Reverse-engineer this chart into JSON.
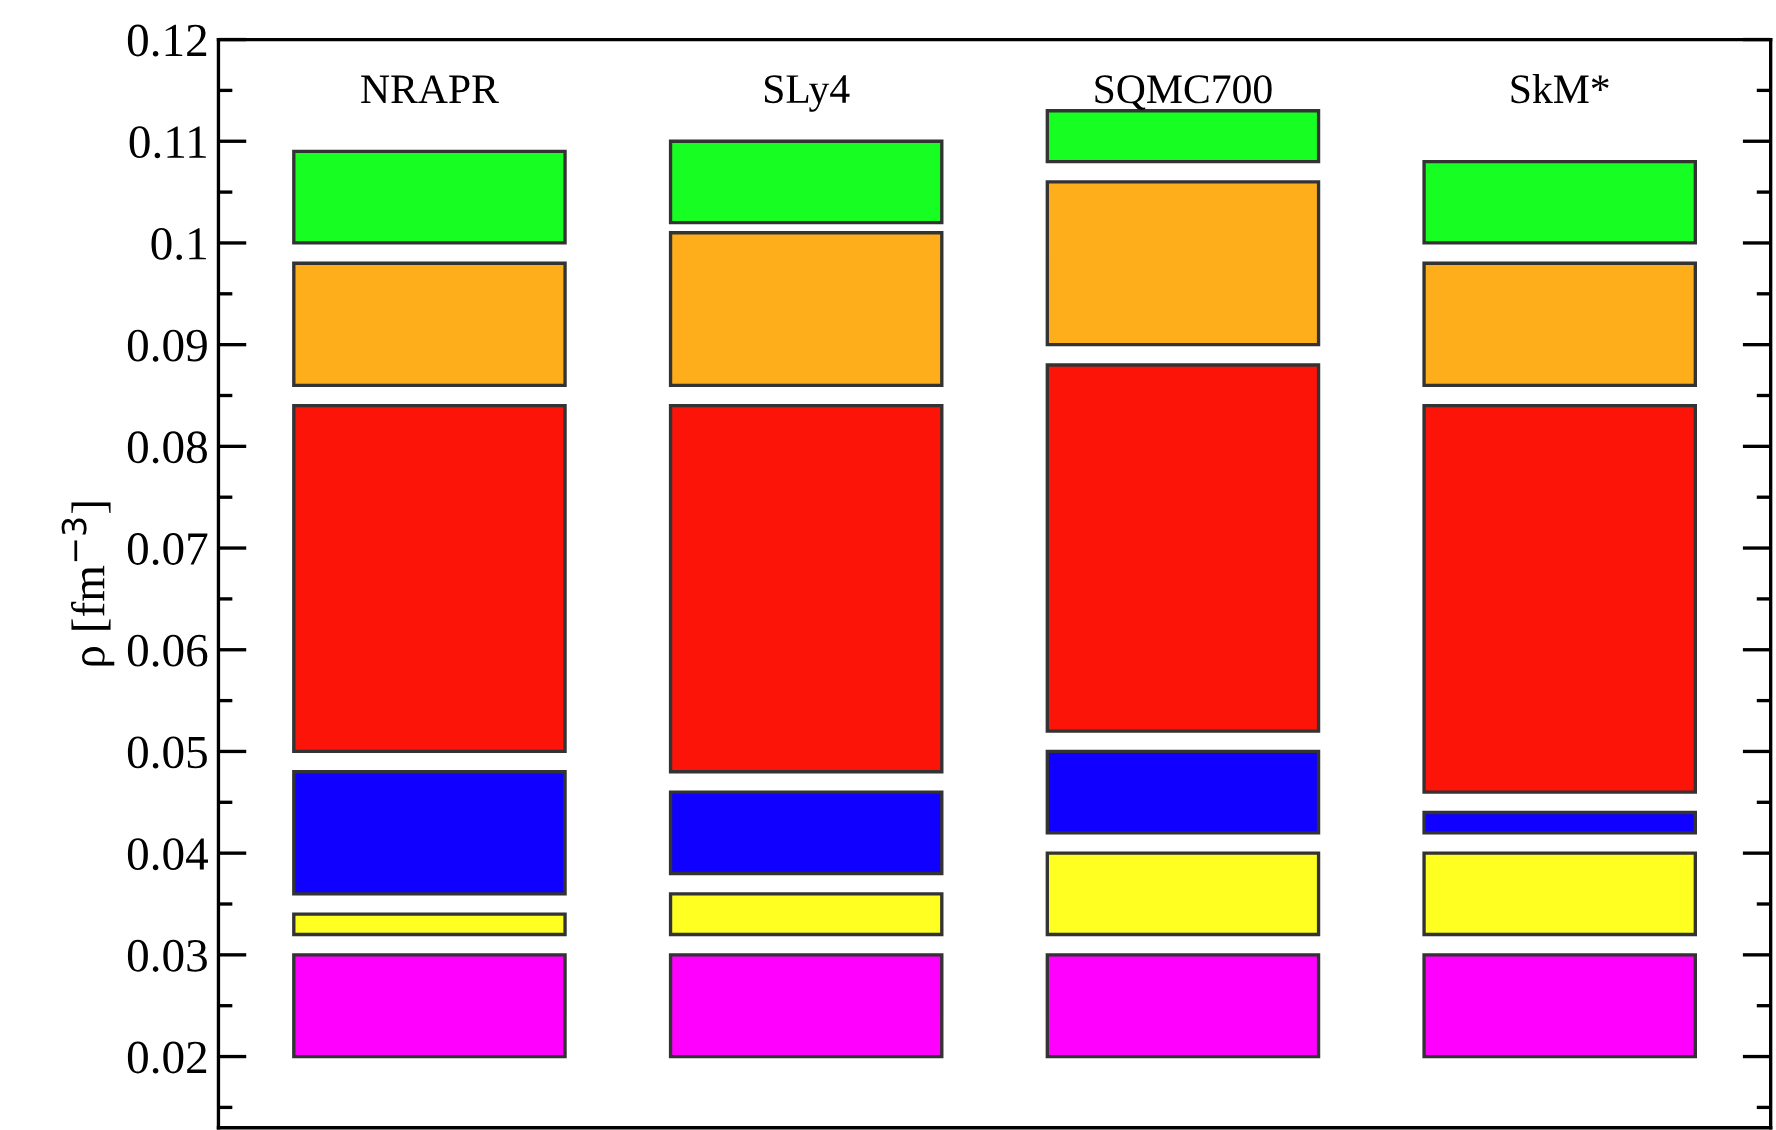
{
  "chart_data": {
    "type": "bar",
    "ylabel": "ρ [fm$^{−3}$]",
    "categories": [
      "NRAPR",
      "SLy4",
      "SQMC700",
      "SkM*"
    ],
    "series": [
      {
        "color": "#ff00ff",
        "base": [
          0.02,
          0.02,
          0.02,
          0.02
        ],
        "values": [
          0.01,
          0.01,
          0.01,
          0.01
        ]
      },
      {
        "color": "#ffff22",
        "base": [
          0.032,
          0.032,
          0.032,
          0.032
        ],
        "values": [
          0.002,
          0.004,
          0.008,
          0.008
        ]
      },
      {
        "color": "#1000ff",
        "base": [
          0.036,
          0.038,
          0.042,
          0.042
        ],
        "values": [
          0.012,
          0.008,
          0.008,
          0.002
        ]
      },
      {
        "color": "#fc1408",
        "base": [
          0.05,
          0.048,
          0.052,
          0.046
        ],
        "values": [
          0.034,
          0.036,
          0.036,
          0.038
        ]
      },
      {
        "color": "#feae1a",
        "base": [
          0.086,
          0.086,
          0.09,
          0.086
        ],
        "values": [
          0.012,
          0.015,
          0.016,
          0.012
        ]
      },
      {
        "color": "#17ff22",
        "base": [
          0.1,
          0.102,
          0.108,
          0.1
        ],
        "values": [
          0.009,
          0.008,
          0.005,
          0.008
        ]
      }
    ],
    "ylim": [
      0.013,
      0.12
    ],
    "yticks": [
      {
        "value": 0.02,
        "label": "0.02"
      },
      {
        "value": 0.03,
        "label": "0.03"
      },
      {
        "value": 0.04,
        "label": "0.04"
      },
      {
        "value": 0.05,
        "label": "0.05"
      },
      {
        "value": 0.06,
        "label": "0.06"
      },
      {
        "value": 0.07,
        "label": "0.07"
      },
      {
        "value": 0.08,
        "label": "0.08"
      },
      {
        "value": 0.09,
        "label": "0.09"
      },
      {
        "value": 0.1,
        "label": "0.1"
      },
      {
        "value": 0.11,
        "label": "0.11"
      },
      {
        "value": 0.12,
        "label": "0.12"
      }
    ],
    "grid": false,
    "legend": false
  }
}
